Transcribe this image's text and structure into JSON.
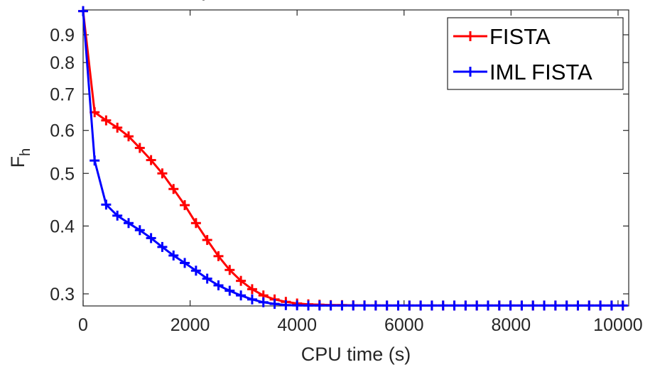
{
  "chart_data": {
    "type": "line",
    "title": "",
    "xlabel": "CPU time (s)",
    "ylabel_main": "F",
    "ylabel_sub": "h",
    "xscale": "linear",
    "yscale": "log",
    "xlim": [
      0,
      10200
    ],
    "ylim": [
      0.285,
      1.0
    ],
    "grid": false,
    "legend_position": "top-right",
    "xticks": [
      0,
      2000,
      4000,
      6000,
      8000,
      10000
    ],
    "xtick_labels": [
      "0",
      "2000",
      "4000",
      "6000",
      "8000",
      "10000"
    ],
    "yticks": [
      0.3,
      0.4,
      0.5,
      0.6,
      0.7,
      0.8,
      0.9
    ],
    "ytick_labels": [
      "0.3",
      "0.4",
      "0.5",
      "0.6",
      "0.7",
      "0.8",
      "0.9"
    ],
    "series": [
      {
        "name": "FISTA",
        "color": "#ff0000",
        "x": [
          0,
          215,
          430,
          640,
          850,
          1060,
          1270,
          1480,
          1690,
          1900,
          2110,
          2320,
          2530,
          2740,
          2950,
          3160,
          3370,
          3580,
          3790,
          4000,
          4210,
          4420,
          4630,
          4840,
          5050,
          5260,
          5470,
          5680,
          5890,
          6100,
          6310,
          6520,
          6730,
          6940,
          7150,
          7360,
          7570,
          7780,
          7990,
          8200,
          8410,
          8620,
          8830,
          9040,
          9250,
          9460,
          9670,
          9880,
          10090
        ],
        "y": [
          0.995,
          0.648,
          0.626,
          0.607,
          0.585,
          0.557,
          0.529,
          0.5,
          0.468,
          0.437,
          0.405,
          0.377,
          0.352,
          0.332,
          0.317,
          0.306,
          0.298,
          0.293,
          0.29,
          0.288,
          0.287,
          0.2865,
          0.286,
          0.286,
          0.2858,
          0.2857,
          0.2856,
          0.2855,
          0.2855,
          0.2855,
          0.2855,
          0.2855,
          0.2855,
          0.2855,
          0.2855,
          0.2855,
          0.2855,
          0.2855,
          0.2855,
          0.2855,
          0.2855,
          0.2855,
          0.2855,
          0.2855,
          0.2855,
          0.2855,
          0.2855,
          0.2855,
          0.2855
        ]
      },
      {
        "name": "IML FISTA",
        "color": "#0000ff",
        "x": [
          0,
          215,
          430,
          640,
          850,
          1060,
          1270,
          1480,
          1690,
          1900,
          2110,
          2320,
          2530,
          2740,
          2950,
          3160,
          3370,
          3580,
          3790,
          4000,
          4210,
          4420,
          4630,
          4840,
          5050,
          5260,
          5470,
          5680,
          5890,
          6100,
          6310,
          6520,
          6730,
          6940,
          7150,
          7360,
          7570,
          7780,
          7990,
          8200,
          8410,
          8620,
          8830,
          9040,
          9250,
          9460,
          9670,
          9880,
          10090
        ],
        "y": [
          0.995,
          0.528,
          0.438,
          0.418,
          0.405,
          0.393,
          0.38,
          0.366,
          0.353,
          0.342,
          0.331,
          0.32,
          0.311,
          0.304,
          0.298,
          0.293,
          0.2895,
          0.2875,
          0.286,
          0.2857,
          0.2855,
          0.2855,
          0.2855,
          0.2855,
          0.2855,
          0.2855,
          0.2855,
          0.2855,
          0.2855,
          0.2855,
          0.2855,
          0.2855,
          0.2855,
          0.2855,
          0.2855,
          0.2855,
          0.2855,
          0.2855,
          0.2855,
          0.2855,
          0.2855,
          0.2855,
          0.2855,
          0.2855,
          0.2855,
          0.2855,
          0.2855,
          0.2855,
          0.2855
        ]
      }
    ]
  }
}
